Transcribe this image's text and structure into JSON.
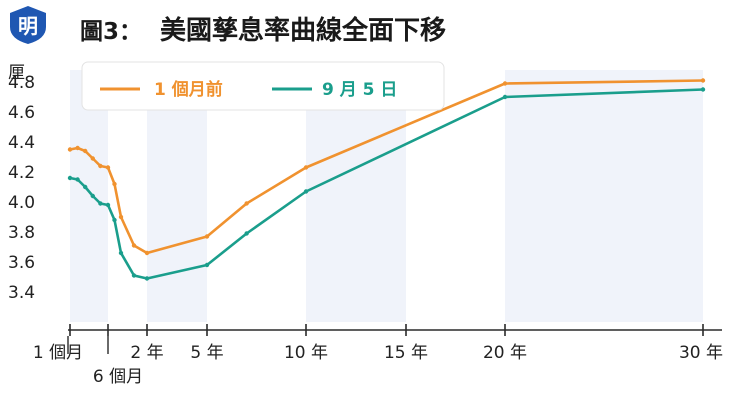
{
  "header": {
    "logo_text": "明",
    "figure_label": "圖3：",
    "title": "美國孳息率曲線全面下移"
  },
  "colors": {
    "series_1": "#f0922f",
    "series_2": "#1a9e8c",
    "band": "#f0f3fa",
    "axis": "#2a2a2a",
    "logo": "#1f57b2"
  },
  "chart_data": {
    "type": "line",
    "title": "美國孳息率曲線全面下移",
    "ylabel": "厘",
    "ylim": [
      3.2,
      4.8
    ],
    "yticks": [
      "3.4",
      "3.6",
      "3.8",
      "4.0",
      "4.2",
      "4.4",
      "4.6",
      "4.8"
    ],
    "grid": false,
    "legend_position": "top",
    "xticks": [
      {
        "maturity_years": 0.0833,
        "label": "1 個月"
      },
      {
        "maturity_years": 0.5,
        "label": "6 個月"
      },
      {
        "maturity_years": 2,
        "label": "2 年"
      },
      {
        "maturity_years": 5,
        "label": "5 年"
      },
      {
        "maturity_years": 10,
        "label": "10 年"
      },
      {
        "maturity_years": 15,
        "label": "15 年"
      },
      {
        "maturity_years": 20,
        "label": "20 年"
      },
      {
        "maturity_years": 30,
        "label": "30 年"
      }
    ],
    "series": [
      {
        "name": "1 個月前",
        "points": [
          [
            0.0833,
            4.35
          ],
          [
            0.1667,
            4.36
          ],
          [
            0.25,
            4.34
          ],
          [
            0.3333,
            4.29
          ],
          [
            0.4167,
            4.24
          ],
          [
            0.5,
            4.23
          ],
          [
            0.75,
            4.12
          ],
          [
            1,
            3.9
          ],
          [
            1.5,
            3.71
          ],
          [
            2,
            3.66
          ],
          [
            5,
            3.77
          ],
          [
            7,
            3.99
          ],
          [
            10,
            4.23
          ],
          [
            20,
            4.79
          ],
          [
            30,
            4.81
          ]
        ]
      },
      {
        "name": "9 月 5 日",
        "points": [
          [
            0.0833,
            4.16
          ],
          [
            0.1667,
            4.15
          ],
          [
            0.25,
            4.1
          ],
          [
            0.3333,
            4.04
          ],
          [
            0.4167,
            3.99
          ],
          [
            0.5,
            3.98
          ],
          [
            0.75,
            3.88
          ],
          [
            1,
            3.66
          ],
          [
            1.5,
            3.51
          ],
          [
            2,
            3.49
          ],
          [
            5,
            3.58
          ],
          [
            7,
            3.79
          ],
          [
            10,
            4.07
          ],
          [
            20,
            4.7
          ],
          [
            30,
            4.75
          ]
        ]
      }
    ]
  }
}
